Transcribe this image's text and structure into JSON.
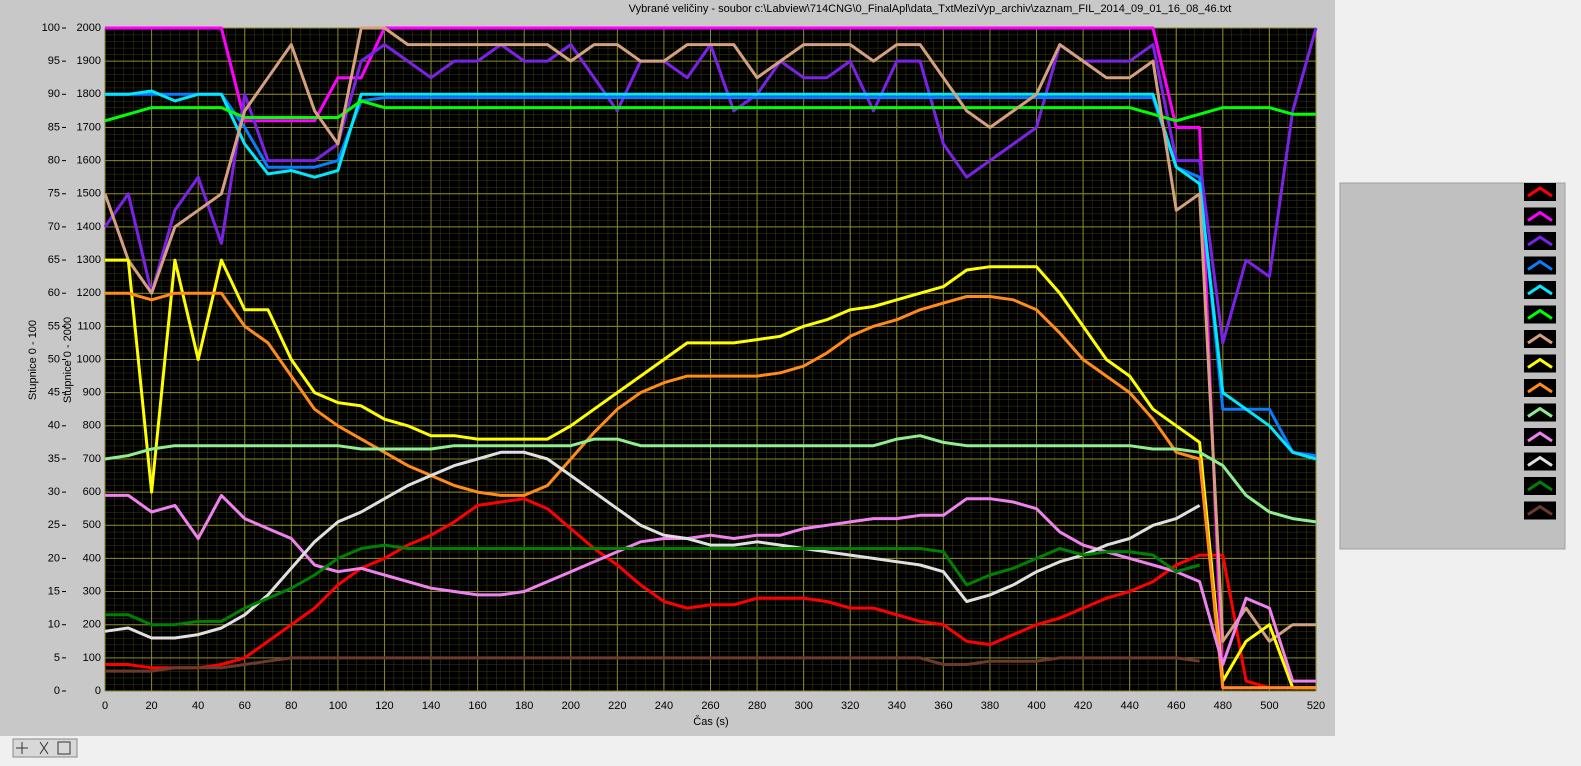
{
  "chart_data": {
    "type": "line",
    "title": "Vybrané veličiny - soubor c:\\Labview\\714CNG\\0_FinalApl\\data_TxtMeziVyp_archiv\\zaznam_FIL_2014_09_01_16_08_46.txt",
    "x_label": "Čas (s)",
    "y_label": "Stupnice 0 - 2000",
    "y2_label": "Stupnice 0 - 100",
    "xlim": [
      0,
      520
    ],
    "xticks": [
      0,
      20,
      40,
      60,
      80,
      100,
      120,
      140,
      160,
      180,
      200,
      220,
      240,
      260,
      280,
      300,
      320,
      340,
      360,
      380,
      400,
      420,
      440,
      460,
      480,
      500,
      520
    ],
    "ylim": [
      0,
      2000
    ],
    "yticks": [
      0,
      100,
      200,
      300,
      400,
      500,
      600,
      700,
      800,
      900,
      1000,
      1100,
      1200,
      1300,
      1400,
      1500,
      1600,
      1700,
      1800,
      1900,
      2000
    ],
    "y2lim": [
      0,
      100
    ],
    "y2ticks": [
      0,
      5,
      10,
      15,
      20,
      25,
      30,
      35,
      40,
      45,
      50,
      55,
      60,
      65,
      70,
      75,
      80,
      85,
      90,
      95,
      100
    ],
    "grid": true,
    "x": [
      0,
      10,
      20,
      30,
      40,
      50,
      60,
      70,
      80,
      90,
      100,
      110,
      120,
      130,
      140,
      150,
      160,
      170,
      180,
      190,
      200,
      210,
      220,
      230,
      240,
      250,
      260,
      270,
      280,
      290,
      300,
      310,
      320,
      330,
      340,
      350,
      360,
      370,
      380,
      390,
      400,
      410,
      420,
      430,
      440,
      450,
      460,
      470,
      480,
      490,
      500,
      510,
      520
    ],
    "series": [
      {
        "color": "#ff0000",
        "values": [
          80,
          80,
          70,
          70,
          70,
          80,
          100,
          150,
          200,
          250,
          320,
          370,
          400,
          440,
          470,
          510,
          560,
          570,
          580,
          550,
          490,
          430,
          380,
          320,
          270,
          250,
          260,
          260,
          280,
          280,
          280,
          270,
          250,
          250,
          230,
          210,
          200,
          150,
          140,
          170,
          200,
          220,
          250,
          280,
          300,
          330,
          380,
          410,
          410,
          30,
          10,
          10,
          10
        ]
      },
      {
        "color": "#ff00ff",
        "values": [
          2000,
          2000,
          2000,
          2000,
          2000,
          2000,
          1720,
          1720,
          1720,
          1720,
          1850,
          1850,
          2000,
          2000,
          2000,
          2000,
          2000,
          2000,
          2000,
          2000,
          2000,
          2000,
          2000,
          2000,
          2000,
          2000,
          2000,
          2000,
          2000,
          2000,
          2000,
          2000,
          2000,
          2000,
          2000,
          2000,
          2000,
          2000,
          2000,
          2000,
          2000,
          2000,
          2000,
          2000,
          2000,
          2000,
          1700,
          1700,
          10,
          10,
          10,
          10,
          10
        ]
      },
      {
        "color": "#7b22e8",
        "values": [
          1400,
          1500,
          1200,
          1450,
          1550,
          1350,
          1800,
          1600,
          1600,
          1600,
          1650,
          1900,
          1950,
          1900,
          1850,
          1900,
          1900,
          1950,
          1900,
          1900,
          1950,
          1850,
          1750,
          1900,
          1900,
          1850,
          1950,
          1750,
          1800,
          1900,
          1850,
          1850,
          1900,
          1750,
          1900,
          1900,
          1650,
          1550,
          1600,
          1650,
          1700,
          1950,
          1900,
          1900,
          1900,
          1950,
          1600,
          1600,
          1050,
          1300,
          1250,
          1750,
          2000
        ]
      },
      {
        "color": "#0a7cff",
        "values": [
          1800,
          1800,
          1800,
          1800,
          1800,
          1800,
          1700,
          1580,
          1580,
          1580,
          1600,
          1780,
          1790,
          1790,
          1790,
          1790,
          1790,
          1790,
          1790,
          1790,
          1790,
          1790,
          1790,
          1790,
          1790,
          1790,
          1790,
          1790,
          1790,
          1790,
          1790,
          1790,
          1790,
          1790,
          1790,
          1790,
          1790,
          1790,
          1790,
          1790,
          1790,
          1790,
          1790,
          1790,
          1790,
          1790,
          1580,
          1550,
          850,
          850,
          850,
          720,
          710
        ]
      },
      {
        "color": "#00e8ff",
        "values": [
          1800,
          1800,
          1810,
          1780,
          1800,
          1800,
          1650,
          1560,
          1570,
          1550,
          1570,
          1800,
          1800,
          1800,
          1800,
          1800,
          1800,
          1800,
          1800,
          1800,
          1800,
          1800,
          1800,
          1800,
          1800,
          1800,
          1800,
          1800,
          1800,
          1800,
          1800,
          1800,
          1800,
          1800,
          1800,
          1800,
          1800,
          1800,
          1800,
          1800,
          1800,
          1800,
          1800,
          1800,
          1800,
          1800,
          1580,
          1530,
          900,
          850,
          800,
          720,
          700
        ]
      },
      {
        "color": "#00ff00",
        "values": [
          1720,
          1740,
          1760,
          1760,
          1760,
          1760,
          1730,
          1730,
          1730,
          1730,
          1730,
          1780,
          1760,
          1760,
          1760,
          1760,
          1760,
          1760,
          1760,
          1760,
          1760,
          1760,
          1760,
          1760,
          1760,
          1760,
          1760,
          1760,
          1760,
          1760,
          1760,
          1760,
          1760,
          1760,
          1760,
          1760,
          1760,
          1760,
          1760,
          1760,
          1760,
          1760,
          1760,
          1760,
          1760,
          1740,
          1720,
          1740,
          1760,
          1760,
          1760,
          1740,
          1740
        ]
      },
      {
        "color": "#d4a080",
        "values": [
          1500,
          1300,
          1200,
          1400,
          1450,
          1500,
          1750,
          1850,
          1950,
          1750,
          1650,
          2000,
          2000,
          1950,
          1950,
          1950,
          1950,
          1950,
          1950,
          1950,
          1900,
          1950,
          1950,
          1900,
          1900,
          1950,
          1950,
          1950,
          1850,
          1900,
          1950,
          1950,
          1950,
          1900,
          1950,
          1950,
          1850,
          1750,
          1700,
          1750,
          1800,
          1950,
          1900,
          1850,
          1850,
          1900,
          1450,
          1500,
          150,
          250,
          150,
          200,
          200
        ]
      },
      {
        "color": "#ffff00",
        "values": [
          1300,
          1300,
          600,
          1300,
          1000,
          1300,
          1150,
          1150,
          1000,
          900,
          870,
          860,
          820,
          800,
          770,
          770,
          760,
          760,
          760,
          760,
          800,
          850,
          900,
          950,
          1000,
          1050,
          1050,
          1050,
          1060,
          1070,
          1100,
          1120,
          1150,
          1160,
          1180,
          1200,
          1220,
          1270,
          1280,
          1280,
          1280,
          1200,
          1100,
          1000,
          950,
          850,
          800,
          750,
          30,
          150,
          200,
          10,
          10
        ]
      },
      {
        "color": "#ff8c1a",
        "values": [
          1200,
          1200,
          1180,
          1200,
          1200,
          1200,
          1100,
          1050,
          950,
          850,
          800,
          760,
          720,
          680,
          650,
          620,
          600,
          590,
          590,
          620,
          700,
          780,
          850,
          900,
          930,
          950,
          950,
          950,
          950,
          960,
          980,
          1020,
          1070,
          1100,
          1120,
          1150,
          1170,
          1190,
          1190,
          1180,
          1150,
          1080,
          1000,
          950,
          900,
          820,
          720,
          700,
          10,
          10,
          10,
          10,
          10
        ]
      },
      {
        "color": "#90ee90",
        "values": [
          700,
          710,
          730,
          740,
          740,
          740,
          740,
          740,
          740,
          740,
          740,
          730,
          730,
          730,
          730,
          740,
          740,
          740,
          740,
          740,
          740,
          760,
          760,
          740,
          740,
          740,
          740,
          740,
          740,
          740,
          740,
          740,
          740,
          740,
          760,
          770,
          750,
          740,
          740,
          740,
          740,
          740,
          740,
          740,
          740,
          730,
          730,
          720,
          680,
          590,
          540,
          520,
          510
        ]
      },
      {
        "color": "#ee82ee",
        "values": [
          590,
          590,
          540,
          560,
          460,
          590,
          520,
          490,
          460,
          380,
          360,
          370,
          350,
          330,
          310,
          300,
          290,
          290,
          300,
          330,
          360,
          390,
          420,
          450,
          460,
          460,
          470,
          460,
          470,
          470,
          490,
          500,
          510,
          520,
          520,
          530,
          530,
          580,
          580,
          570,
          550,
          480,
          440,
          420,
          400,
          380,
          360,
          330,
          80,
          280,
          250,
          30,
          30
        ]
      },
      {
        "color": "#e0e0e0",
        "values": [
          180,
          190,
          160,
          160,
          170,
          190,
          230,
          290,
          370,
          450,
          510,
          540,
          580,
          620,
          650,
          680,
          700,
          720,
          720,
          700,
          650,
          600,
          550,
          500,
          470,
          460,
          440,
          440,
          450,
          440,
          430,
          420,
          410,
          400,
          390,
          380,
          360,
          270,
          290,
          320,
          360,
          390,
          410,
          440,
          460,
          500,
          520,
          560,
          null,
          null,
          null,
          null,
          null
        ]
      },
      {
        "color": "#008000",
        "values": [
          230,
          230,
          200,
          200,
          210,
          210,
          250,
          280,
          310,
          350,
          400,
          430,
          440,
          430,
          430,
          430,
          430,
          430,
          430,
          430,
          430,
          430,
          430,
          430,
          430,
          430,
          430,
          430,
          430,
          430,
          430,
          430,
          430,
          430,
          430,
          430,
          420,
          320,
          350,
          370,
          400,
          430,
          410,
          420,
          420,
          410,
          360,
          380,
          null,
          null,
          null,
          null,
          null
        ]
      },
      {
        "color": "#6b3a2a",
        "values": [
          60,
          60,
          60,
          70,
          70,
          70,
          80,
          90,
          100,
          100,
          100,
          100,
          100,
          100,
          100,
          100,
          100,
          100,
          100,
          100,
          100,
          100,
          100,
          100,
          100,
          100,
          100,
          100,
          100,
          100,
          100,
          100,
          100,
          100,
          100,
          100,
          80,
          80,
          90,
          90,
          90,
          100,
          100,
          100,
          100,
          100,
          100,
          90,
          null,
          null,
          null,
          null,
          null
        ]
      }
    ]
  }
}
